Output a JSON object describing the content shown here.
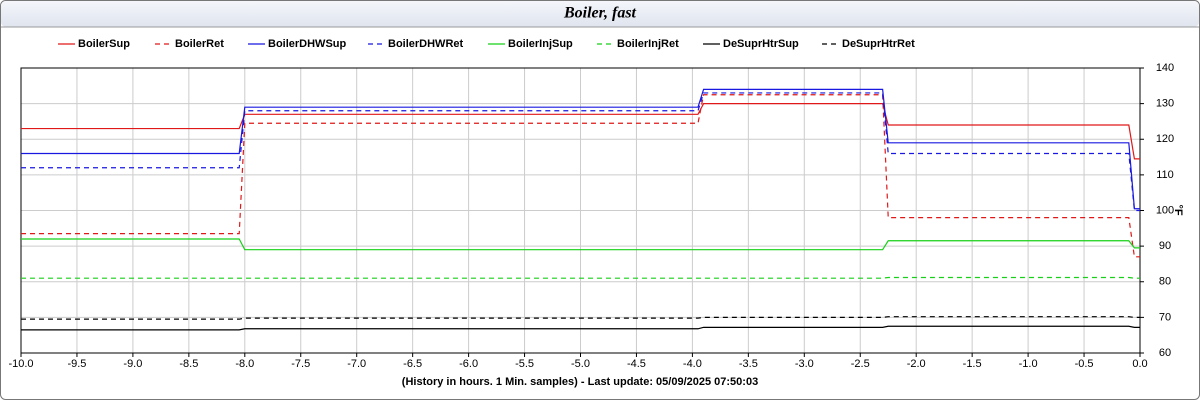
{
  "chart_data": {
    "type": "line",
    "title": "Boiler, fast",
    "xlabel": "(History in hours. 1 Min. samples) - Last update: 05/09/2025 07:50:03",
    "ylabel": "°F",
    "x": [
      -10,
      -8.05,
      -8.0,
      -3.95,
      -3.9,
      -2.3,
      -2.25,
      -0.1,
      -0.05,
      0
    ],
    "series": [
      {
        "name": "BoilerSup",
        "color": "#e01818",
        "dash": false,
        "values": [
          123,
          123,
          127,
          127,
          130,
          130,
          124,
          124,
          114.5,
          114.5
        ]
      },
      {
        "name": "BoilerRet",
        "color": "#e01818",
        "dash": true,
        "values": [
          93.5,
          93.5,
          124.5,
          124.5,
          132.5,
          132.5,
          98,
          98,
          87,
          87
        ]
      },
      {
        "name": "BoilerDHWSup",
        "color": "#1818e0",
        "dash": false,
        "values": [
          116,
          116,
          129,
          129,
          134,
          134,
          119,
          119,
          100.5,
          100.5
        ]
      },
      {
        "name": "BoilerDHWRet",
        "color": "#1818e0",
        "dash": true,
        "values": [
          112,
          112,
          128,
          128,
          133,
          133,
          116,
          116,
          100,
          100
        ]
      },
      {
        "name": "BoilerInjSup",
        "color": "#18d018",
        "dash": false,
        "values": [
          92,
          92,
          89,
          89,
          89,
          89,
          91.5,
          91.5,
          89.5,
          89.5
        ]
      },
      {
        "name": "BoilerInjRet",
        "color": "#18d018",
        "dash": true,
        "values": [
          81,
          81,
          81,
          81,
          81,
          81,
          81.2,
          81.2,
          81,
          81
        ]
      },
      {
        "name": "DeSuprHtrSup",
        "color": "#000000",
        "dash": false,
        "values": [
          66.5,
          66.5,
          66.8,
          66.8,
          67.2,
          67.2,
          67.5,
          67.5,
          67.2,
          67.2
        ]
      },
      {
        "name": "DeSuprHtrRet",
        "color": "#000000",
        "dash": true,
        "values": [
          69.5,
          69.5,
          69.8,
          69.8,
          70,
          70,
          70.2,
          70.2,
          70,
          70
        ]
      }
    ],
    "xlim": [
      -10,
      0
    ],
    "xticks": [
      {
        "value": -10,
        "label": "-10.0"
      },
      -9.5,
      {
        "value": -9,
        "label": "-9.0"
      },
      -8.5,
      {
        "value": -8,
        "label": "-8.0"
      },
      -7.5,
      {
        "value": -7,
        "label": "-7.0"
      },
      -6.5,
      {
        "value": -6,
        "label": "-6.0"
      },
      -5.5,
      {
        "value": -5,
        "label": "-5.0"
      },
      -4.5,
      {
        "value": -4,
        "label": "-4.0"
      },
      -3.5,
      {
        "value": -3,
        "label": "-3.0"
      },
      -2.5,
      {
        "value": -2,
        "label": "-2.0"
      },
      -1.5,
      {
        "value": -1,
        "label": "-1.0"
      },
      -0.5,
      {
        "value": 0,
        "label": "0.0"
      }
    ],
    "ylim": [
      60,
      140
    ],
    "yticks": [
      60,
      70,
      80,
      90,
      100,
      110,
      120,
      130,
      140
    ],
    "grid": true
  }
}
